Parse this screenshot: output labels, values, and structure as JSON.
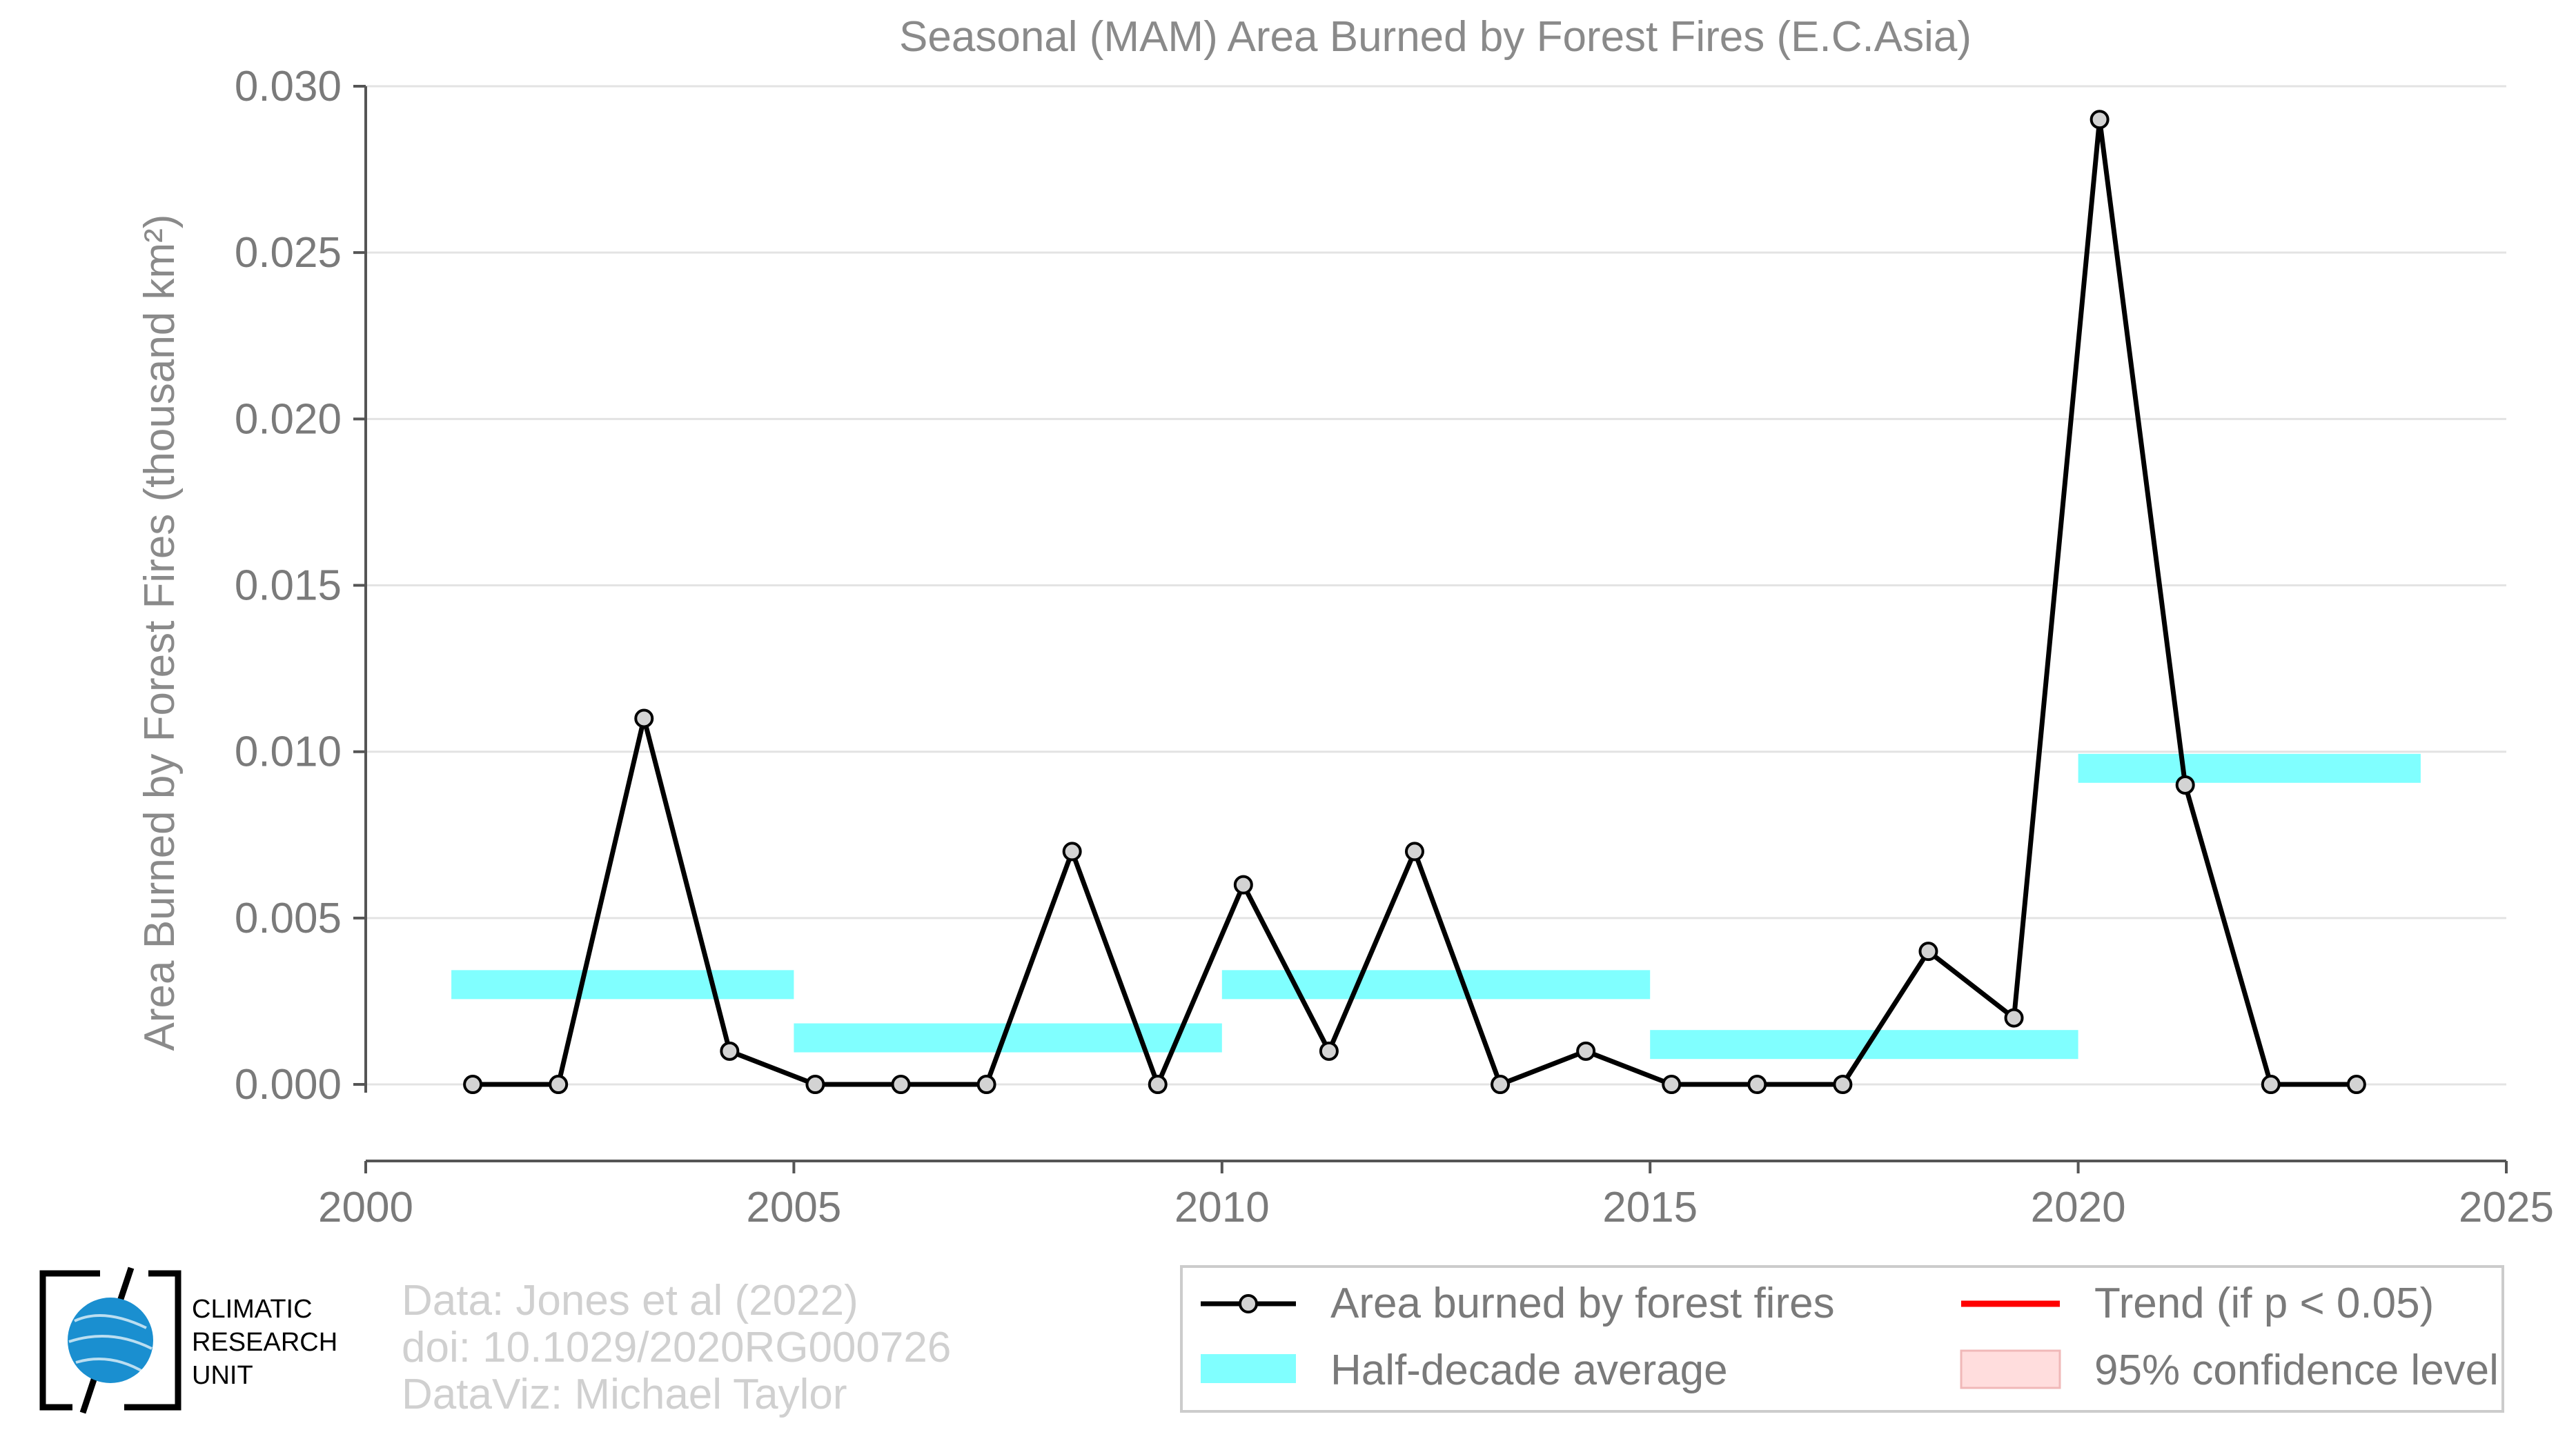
{
  "chart_data": {
    "type": "line",
    "title": "Seasonal (MAM) Area Burned by Forest Fires (E.C.Asia)",
    "xlabel": "",
    "ylabel": "Area Burned by Forest Fires (thousand km²)",
    "xlim": [
      2000,
      2025
    ],
    "ylim": [
      -0.0023,
      0.03
    ],
    "x_ticks": [
      "2000",
      "2005",
      "2010",
      "2015",
      "2020",
      "2025"
    ],
    "y_ticks": [
      "0.000",
      "0.005",
      "0.010",
      "0.015",
      "0.020",
      "0.025",
      "0.030"
    ],
    "grid": "horizontal",
    "series": [
      {
        "name": "Area burned by forest fires",
        "color": "#000000",
        "x": [
          2001.25,
          2002.25,
          2003.25,
          2004.25,
          2005.25,
          2006.25,
          2007.25,
          2008.25,
          2009.25,
          2010.25,
          2011.25,
          2012.25,
          2013.25,
          2014.25,
          2015.25,
          2016.25,
          2017.25,
          2018.25,
          2019.25,
          2020.25,
          2021.25,
          2022.25,
          2023.25
        ],
        "y": [
          0.0,
          0.0,
          0.011,
          0.001,
          0.0,
          0.0,
          0.0,
          0.007,
          0.0,
          0.006,
          0.001,
          0.007,
          0.0,
          0.001,
          0.0,
          0.0,
          0.0,
          0.004,
          0.002,
          0.029,
          0.009,
          0.0,
          0.0
        ]
      }
    ],
    "half_decade_average": {
      "name": "Half-decade average",
      "color": "#80ffff",
      "segments": [
        {
          "x0": 2001,
          "x1": 2005,
          "y": 0.003
        },
        {
          "x0": 2005,
          "x1": 2010,
          "y": 0.0014
        },
        {
          "x0": 2010,
          "x1": 2015,
          "y": 0.003
        },
        {
          "x0": 2015,
          "x1": 2020,
          "y": 0.0012
        },
        {
          "x0": 2020,
          "x1": 2024,
          "y": 0.0095
        }
      ]
    },
    "legend": {
      "placement": "bottom-right",
      "entries": [
        {
          "label": "Area burned by forest fires",
          "type": "line-marker",
          "color": "#000000"
        },
        {
          "label": "Trend (if p < 0.05)",
          "type": "line",
          "color": "#ff0000"
        },
        {
          "label": "Half-decade average",
          "type": "band",
          "color": "#80ffff"
        },
        {
          "label": "95% confidence level",
          "type": "band",
          "color": "#ffdddd"
        }
      ]
    }
  },
  "credits": {
    "line1": "Data: Jones et al (2022)",
    "line2": "doi: 10.1029/2020RG000726",
    "line3": "DataViz: Michael Taylor"
  },
  "logo": {
    "line1": "CLIMATIC",
    "line2": "RESEARCH",
    "line3": "UNIT"
  }
}
